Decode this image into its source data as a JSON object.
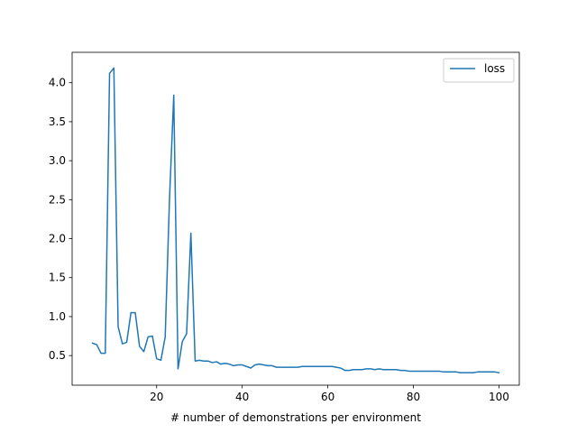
{
  "chart_data": {
    "type": "line",
    "xlabel": "# number of demonstrations per environment",
    "ylabel": "",
    "xlim": [
      0.25,
      104.75
    ],
    "ylim": [
      0.12,
      4.39
    ],
    "xticks": [
      20,
      40,
      60,
      80,
      100
    ],
    "yticks": [
      0.5,
      1.0,
      1.5,
      2.0,
      2.5,
      3.0,
      3.5,
      4.0
    ],
    "ytick_labels": [
      "0.5",
      "1.0",
      "1.5",
      "2.0",
      "2.5",
      "3.0",
      "3.5",
      "4.0"
    ],
    "grid": false,
    "legend_position": "top-right",
    "series": [
      {
        "name": "loss",
        "color": "#1f77b4",
        "x": [
          5,
          6,
          7,
          8,
          9,
          10,
          11,
          12,
          13,
          14,
          15,
          16,
          17,
          18,
          19,
          20,
          21,
          22,
          23,
          24,
          25,
          26,
          27,
          28,
          29,
          30,
          31,
          32,
          33,
          34,
          35,
          36,
          37,
          38,
          39,
          40,
          41,
          42,
          43,
          44,
          45,
          46,
          47,
          48,
          49,
          50,
          51,
          52,
          53,
          54,
          55,
          56,
          57,
          58,
          59,
          60,
          61,
          62,
          63,
          64,
          65,
          66,
          67,
          68,
          69,
          70,
          71,
          72,
          73,
          74,
          75,
          76,
          77,
          78,
          79,
          80,
          81,
          82,
          83,
          84,
          85,
          86,
          87,
          88,
          89,
          90,
          91,
          92,
          93,
          94,
          95,
          96,
          97,
          98,
          99,
          100
        ],
        "y": [
          0.66,
          0.64,
          0.53,
          0.53,
          4.12,
          4.19,
          0.87,
          0.65,
          0.67,
          1.05,
          1.05,
          0.62,
          0.55,
          0.74,
          0.75,
          0.46,
          0.44,
          0.74,
          2.5,
          3.84,
          0.33,
          0.68,
          0.78,
          2.07,
          0.43,
          0.44,
          0.43,
          0.43,
          0.41,
          0.42,
          0.39,
          0.4,
          0.39,
          0.37,
          0.38,
          0.38,
          0.36,
          0.34,
          0.38,
          0.39,
          0.38,
          0.37,
          0.37,
          0.35,
          0.35,
          0.35,
          0.35,
          0.35,
          0.35,
          0.36,
          0.36,
          0.36,
          0.36,
          0.36,
          0.36,
          0.36,
          0.36,
          0.35,
          0.34,
          0.31,
          0.31,
          0.32,
          0.32,
          0.32,
          0.33,
          0.33,
          0.32,
          0.33,
          0.32,
          0.32,
          0.32,
          0.32,
          0.31,
          0.31,
          0.3,
          0.3,
          0.3,
          0.3,
          0.3,
          0.3,
          0.3,
          0.3,
          0.29,
          0.29,
          0.29,
          0.29,
          0.28,
          0.28,
          0.28,
          0.28,
          0.29,
          0.29,
          0.29,
          0.29,
          0.29,
          0.28
        ]
      }
    ]
  }
}
